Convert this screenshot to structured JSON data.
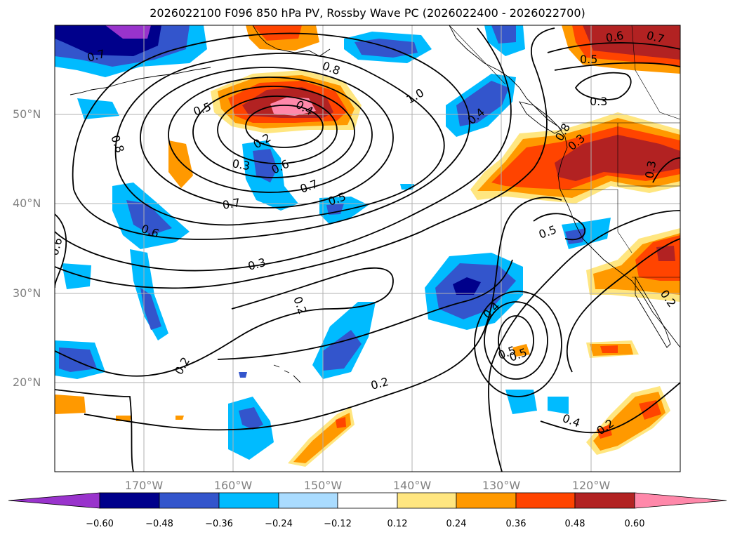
{
  "title": "2026022100 F096 850 hPa PV, Rossby Wave PC (2026022400 - 2026022700)",
  "map": {
    "lat_labels": [
      "50°N",
      "40°N",
      "30°N",
      "20°N"
    ],
    "lon_labels": [
      "170°W",
      "160°W",
      "150°W",
      "140°W",
      "130°W",
      "120°W"
    ],
    "contour_labels": [
      "0.7",
      "0.8",
      "0.5",
      "0.4",
      "0.2",
      "0.3",
      "0.6",
      "0.7",
      "1.0",
      "0.8",
      "0.8",
      "0.6",
      "0.7",
      "0.5",
      "0.3",
      "0.3",
      "0.6",
      "0.6",
      "0.7",
      "0.5",
      "0.4",
      "0.5",
      "0.3",
      "0.3",
      "0.2",
      "0.2",
      "0.2",
      "0.4",
      "0.5",
      "0.5",
      "0.4",
      "0.2",
      "0.2"
    ],
    "colors": {
      "fill_neg_strong": "#9933cc",
      "fill_navy": "#00008b",
      "fill_blue": "#3355cc",
      "fill_cyan": "#00bbff",
      "fill_lightblue": "#aadcff",
      "fill_yellow": "#ffe680",
      "fill_orange": "#ff9900",
      "fill_redorange": "#ff4400",
      "fill_darkred": "#b22222",
      "fill_pink": "#ff88aa"
    }
  },
  "colorbar": {
    "ticks": [
      "−0.60",
      "−0.48",
      "−0.36",
      "−0.24",
      "−0.12",
      "0.12",
      "0.24",
      "0.36",
      "0.48",
      "0.60"
    ],
    "colors": [
      "#9933cc",
      "#00008b",
      "#3355cc",
      "#00bbff",
      "#aadcff",
      "#ffffff",
      "#ffe680",
      "#ff9900",
      "#ff4400",
      "#b22222",
      "#ff88aa"
    ]
  }
}
